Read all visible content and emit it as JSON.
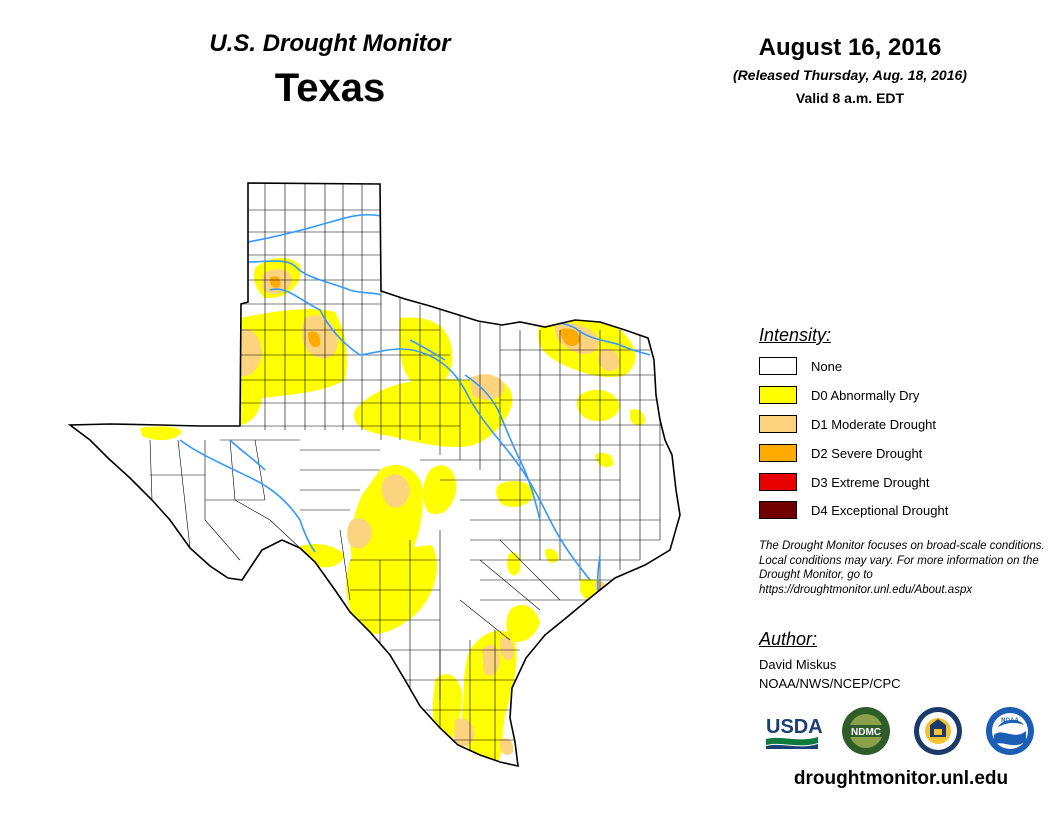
{
  "header": {
    "monitor_title": "U.S. Drought Monitor",
    "state": "Texas",
    "date": "August 16, 2016",
    "released": "(Released Thursday, Aug. 18, 2016)",
    "valid": "Valid 8 a.m. EDT"
  },
  "legend": {
    "title": "Intensity:",
    "items": [
      {
        "label": "None",
        "color": "#ffffff"
      },
      {
        "label": "D0 Abnormally Dry",
        "color": "#ffff00"
      },
      {
        "label": "D1 Moderate Drought",
        "color": "#fcd37f"
      },
      {
        "label": "D2 Severe Drought",
        "color": "#ffaa00"
      },
      {
        "label": "D3 Extreme Drought",
        "color": "#e60000"
      },
      {
        "label": "D4 Exceptional Drought",
        "color": "#730000"
      }
    ]
  },
  "notice": "The Drought Monitor focuses on broad-scale conditions. Local conditions may vary. For more information on the Drought Monitor, go to https://droughtmonitor.unl.edu/About.aspx",
  "author": {
    "title": "Author:",
    "name": "David Miskus",
    "organization": "NOAA/NWS/NCEP/CPC"
  },
  "logos": [
    {
      "name": "usda",
      "text": "USDA"
    },
    {
      "name": "ndmc",
      "text": "NDMC"
    },
    {
      "name": "doc",
      "text": ""
    },
    {
      "name": "noaa",
      "text": "NOAA"
    }
  ],
  "site_url": "droughtmonitor.unl.edu",
  "map": {
    "river_color": "#3399ff",
    "border_color": "#000000"
  }
}
